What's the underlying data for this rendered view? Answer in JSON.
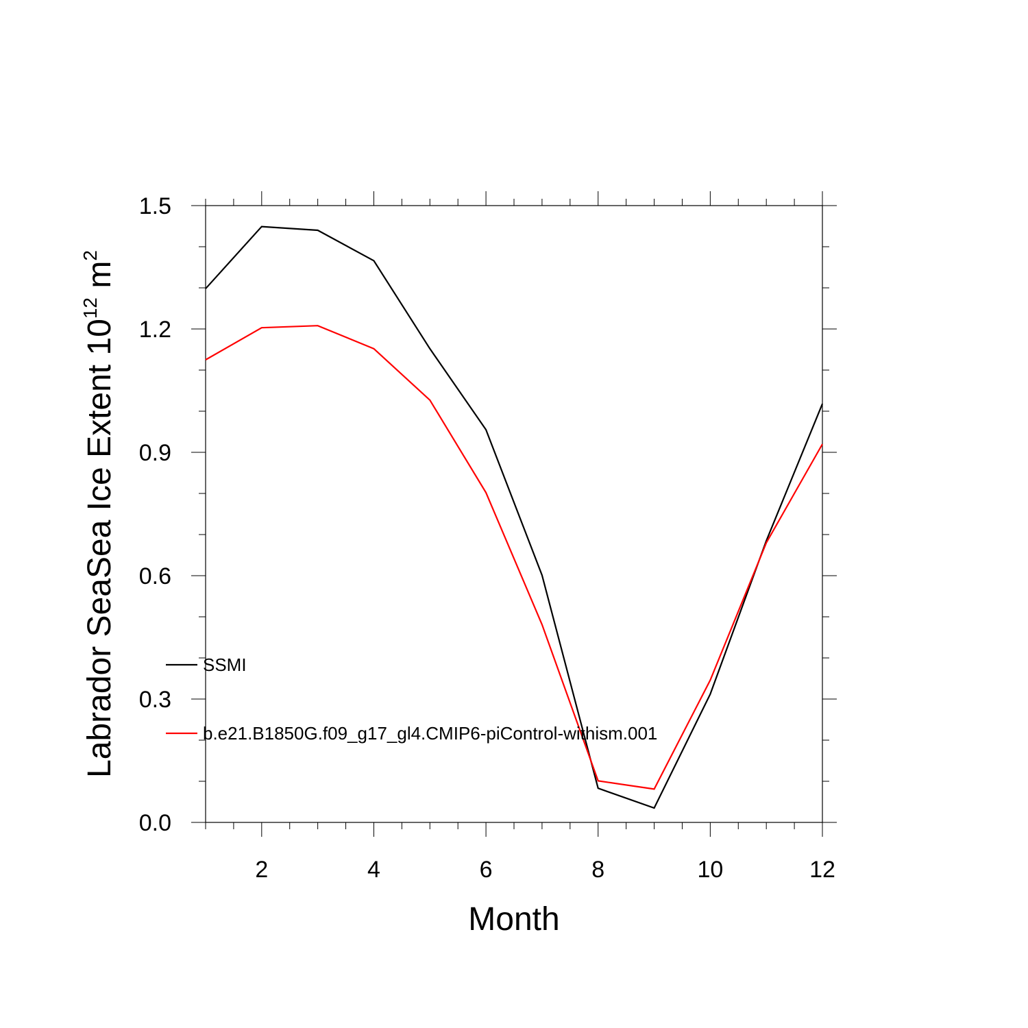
{
  "chart_data": {
    "type": "line",
    "title": "",
    "xlabel": "Month",
    "ylabel_parts": {
      "text": "Labrador SeaSea Ice Extent 10",
      "exponent": "12",
      "unit": " m",
      "unit_exponent": "2"
    },
    "x": [
      1,
      2,
      3,
      4,
      5,
      6,
      7,
      8,
      9,
      10,
      11,
      12
    ],
    "xlim": [
      1,
      12
    ],
    "ylim": [
      0,
      1.5
    ],
    "x_major_ticks": [
      2,
      4,
      6,
      8,
      10,
      12
    ],
    "x_tick_labels": [
      "2",
      "4",
      "6",
      "8",
      "10",
      "12"
    ],
    "y_major_ticks": [
      0,
      0.3,
      0.6,
      0.9,
      1.2,
      1.5
    ],
    "y_tick_labels": [
      "0.0",
      "0.3",
      "0.6",
      "0.9",
      "1.2",
      "1.5"
    ],
    "grid": false,
    "legend_position": "inside-left",
    "series": [
      {
        "name": "SSMI",
        "color": "#000000",
        "values": [
          1.298,
          1.449,
          1.44,
          1.366,
          1.152,
          0.955,
          0.601,
          0.083,
          0.035,
          0.312,
          0.685,
          1.018
        ]
      },
      {
        "name": "b.e21.B1850G.f09_g17_gl4.CMIP6-piControl-withism.001",
        "color": "#ff0000",
        "values": [
          1.125,
          1.203,
          1.208,
          1.152,
          1.027,
          0.802,
          0.481,
          0.101,
          0.081,
          0.346,
          0.68,
          0.92
        ]
      }
    ]
  }
}
